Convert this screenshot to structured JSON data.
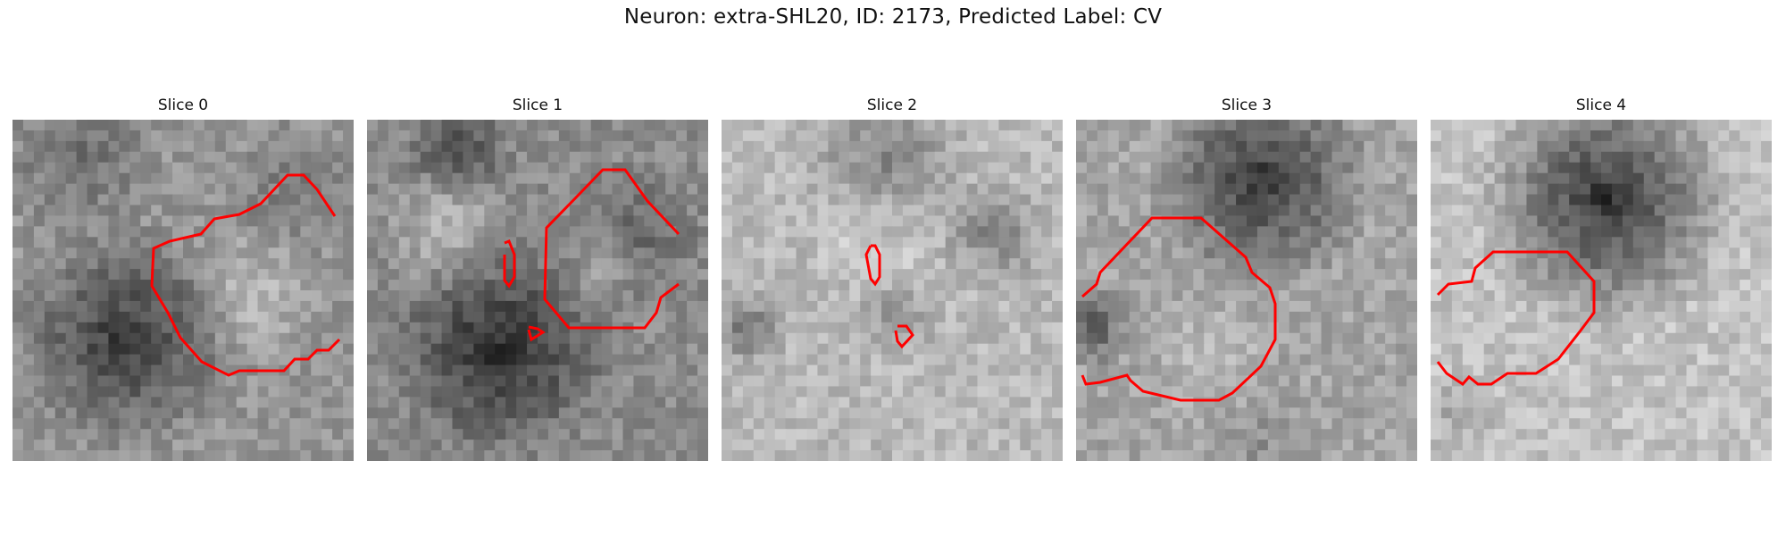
{
  "figure": {
    "title": "Neuron: extra-SHL20, ID: 2173, Predicted Label: CV"
  },
  "slices": [
    {
      "title": "Slice 0",
      "texture": "dark blob lower-left, light ring center-right"
    },
    {
      "title": "Slice 1",
      "texture": "dark cell body bottom-center, light blobs top"
    },
    {
      "title": "Slice 2",
      "texture": "light round cell top-center, dark edges left"
    },
    {
      "title": "Slice 3",
      "texture": "dark cell body top-right"
    },
    {
      "title": "Slice 4",
      "texture": "large dark round cell top-center"
    }
  ],
  "contour_color": "#ff0000"
}
